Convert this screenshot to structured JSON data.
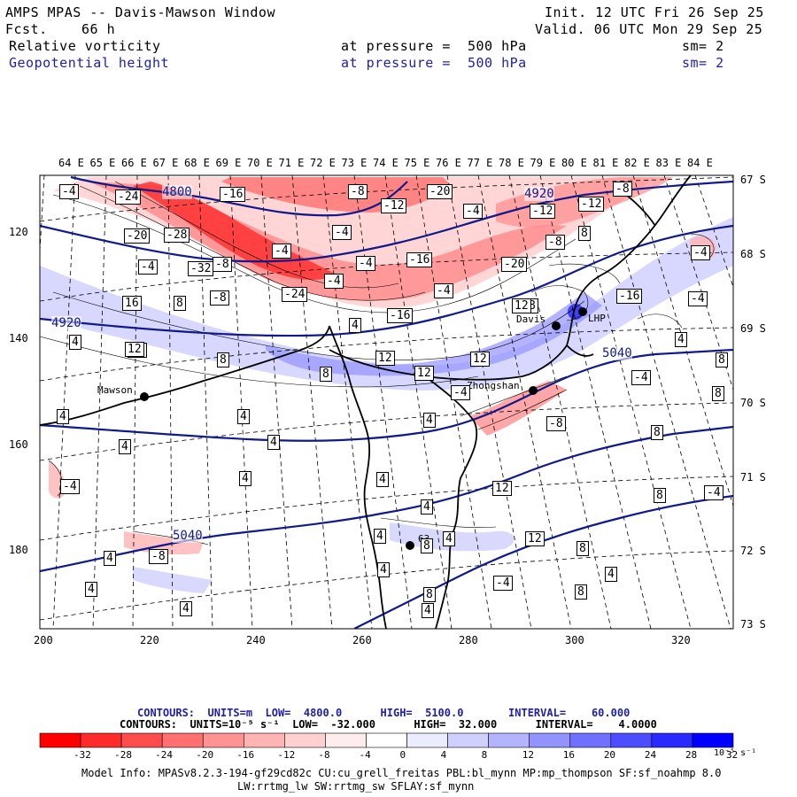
{
  "header": {
    "title": "AMPS MPAS -- Davis-Mawson Window",
    "fcst_label": "Fcst.",
    "fcst_value": "66 h",
    "init": "Init. 12 UTC Fri 26 Sep 25",
    "valid": "Valid. 06 UTC Mon 29 Sep 25",
    "field1": {
      "name": "Relative vorticity",
      "pressure": "at pressure =  500 hPa",
      "sm": "sm= 2"
    },
    "field2": {
      "name": "Geopotential height",
      "pressure": "at pressure =  500 hPa",
      "sm": "sm= 2"
    }
  },
  "colors": {
    "blue_text": "#1f1fa8",
    "height_contour": "#101a8c",
    "coast": "#000000"
  },
  "map": {
    "top_longitudes": [
      "64 E",
      "65 E",
      "66 E",
      "67 E",
      "68 E",
      "69 E",
      "70 E",
      "71 E",
      "72 E",
      "73 E",
      "74 E",
      "75 E",
      "76 E",
      "77 E",
      "78 E",
      "79 E",
      "80 E",
      "81 E",
      "82 E",
      "83 E",
      "84 E"
    ],
    "right_latitudes": [
      "67 S",
      "68 S",
      "69 S",
      "70 S",
      "71 S",
      "72 S",
      "73 S"
    ],
    "x_ticks": [
      "200",
      "220",
      "240",
      "260",
      "280",
      "300",
      "320"
    ],
    "y_ticks": [
      "120",
      "140",
      "160",
      "180"
    ],
    "stations": [
      {
        "name": "Mawson"
      },
      {
        "name": "Davis"
      },
      {
        "name": "Zhongshan"
      },
      {
        "name": "LHP"
      },
      {
        "name": "63"
      }
    ],
    "height_labels": [
      "4800",
      "4920",
      "4920",
      "5040",
      "5040"
    ],
    "vorticity_labels": [
      "-4",
      "-24",
      "-16",
      "-8",
      "-20",
      "-4",
      "-12",
      "-12",
      "-8",
      "-4",
      "-20",
      "-28",
      "-4",
      "-8",
      "-4",
      "-16",
      "-4",
      "-8",
      "-12",
      "-32",
      "-4",
      "-4",
      "-20",
      "8",
      "-8",
      "-24",
      "-4",
      "-16",
      "-16",
      "16",
      "8",
      "4",
      "8",
      "-4",
      "16",
      "12",
      "8",
      "4",
      "4",
      "12",
      "8",
      "12",
      "12",
      "12",
      "8",
      "-4",
      "-4",
      "4",
      "-8",
      "4",
      "8",
      "4",
      "4",
      "4",
      "4",
      "-4",
      "4",
      "4",
      "8",
      "12",
      "-4",
      "4",
      "8",
      "4",
      "12",
      "8",
      "-8",
      "4",
      "4",
      "-4",
      "8",
      "4",
      "4",
      "4",
      "8",
      "4",
      "8"
    ]
  },
  "legend": {
    "line1": "CONTOURS:  UNITS=m  LOW=  4800.0      HIGH=  5100.0       INTERVAL=    60.000",
    "line2": "CONTOURS:  UNITS=10⁻⁵ s⁻¹  LOW=  -32.000      HIGH=  32.000      INTERVAL=    4.0000",
    "ticks": [
      "-32",
      "-28",
      "-24",
      "-20",
      "-16",
      "-12",
      "-8",
      "-4",
      "0",
      "4",
      "8",
      "12",
      "16",
      "20",
      "24",
      "28",
      "32"
    ],
    "units": "10⁻⁵ s⁻¹",
    "colors": [
      "#ff0000",
      "#ff2a2a",
      "#ff4d4d",
      "#ff7070",
      "#ff9393",
      "#ffb3b3",
      "#ffd0d0",
      "#ffecec",
      "#ffffff",
      "#ececff",
      "#d0d0ff",
      "#b3b3ff",
      "#9393ff",
      "#7070ff",
      "#4d4dff",
      "#2a2aff",
      "#0000ff"
    ]
  },
  "footer": {
    "line1": "Model Info: MPASv8.2.3-194-gf29cd82c CU:cu_grell_freitas PBL:bl_mynn MP:mp_thompson SF:sf_noahmp 8.0",
    "line2": "LW:rrtmg_lw SW:rrtmg_sw SFLAY:sf_mynn"
  }
}
